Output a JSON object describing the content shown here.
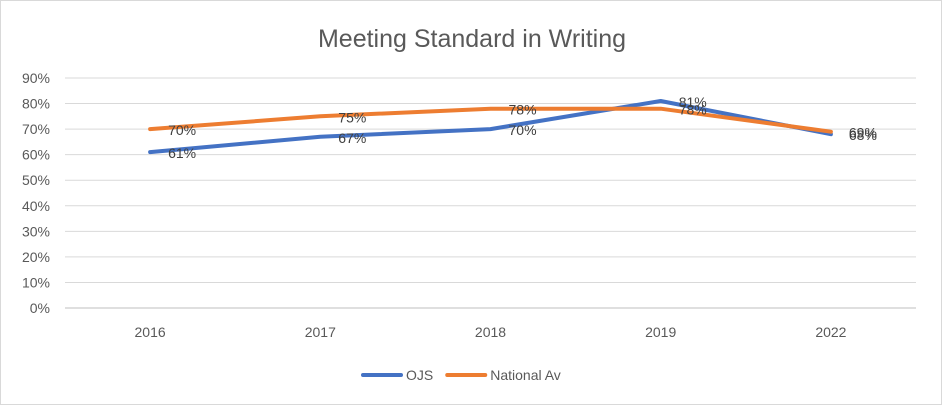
{
  "chart_data": {
    "type": "line",
    "title": "Meeting Standard in Writing",
    "xlabel": "",
    "ylabel": "",
    "categories": [
      "2016",
      "2017",
      "2018",
      "2019",
      "2022"
    ],
    "ylim": [
      0,
      90
    ],
    "y_ticks": [
      "0%",
      "10%",
      "20%",
      "30%",
      "40%",
      "50%",
      "60%",
      "70%",
      "80%",
      "90%"
    ],
    "grid": true,
    "legend_position": "bottom",
    "series": [
      {
        "name": "OJS",
        "color": "#4472c4",
        "values": [
          61,
          67,
          70,
          81,
          68
        ],
        "labels": [
          "61%",
          "67%",
          "70%",
          "81%",
          "68%"
        ]
      },
      {
        "name": "National Av",
        "color": "#ed7d31",
        "values": [
          70,
          75,
          78,
          78,
          69
        ],
        "labels": [
          "70%",
          "75%",
          "78%",
          "78%",
          "69%"
        ]
      }
    ]
  }
}
